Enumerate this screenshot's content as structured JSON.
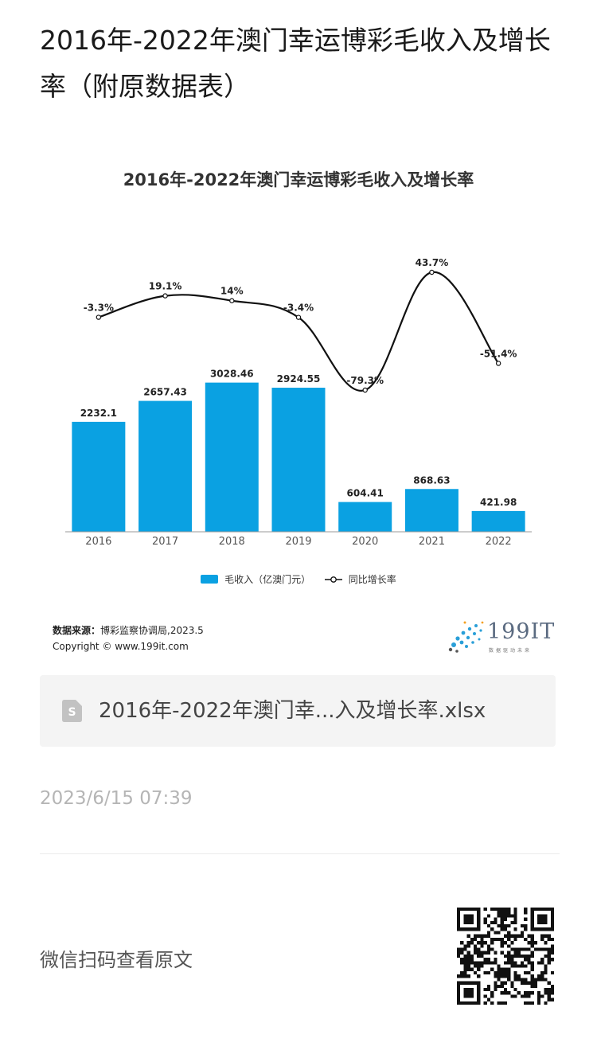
{
  "page": {
    "title": "2016年-2022年澳门幸运博彩毛收入及增长率（附原数据表）"
  },
  "chart_data": {
    "type": "bar",
    "title": "2016年-2022年澳门幸运博彩毛收入及增长率",
    "categories": [
      "2016",
      "2017",
      "2018",
      "2019",
      "2020",
      "2021",
      "2022"
    ],
    "series": [
      {
        "name": "毛收入（亿澳门元）",
        "type": "bar",
        "values": [
          2232.1,
          2657.43,
          3028.46,
          2924.55,
          604.41,
          868.63,
          421.98
        ],
        "labels": [
          "2232.1",
          "2657.43",
          "3028.46",
          "2924.55",
          "604.41",
          "868.63",
          "421.98"
        ],
        "color": "#0aa1e2"
      },
      {
        "name": "同比增长率",
        "type": "line",
        "values": [
          -3.3,
          19.1,
          14,
          -3.4,
          -79.3,
          43.7,
          -51.4
        ],
        "labels": [
          "-3.3%",
          "19.1%",
          "14%",
          "-3.4%",
          "-79.3%",
          "43.7%",
          "-51.4%"
        ],
        "color": "#111111"
      }
    ],
    "ylim": [
      0,
      3200
    ],
    "grid": false,
    "legend_position": "bottom"
  },
  "source": {
    "label": "数据来源：",
    "text": "博彩监察协调局,2023.5",
    "copyright": "Copyright © www.199it.com"
  },
  "brand": {
    "name": "199IT",
    "tagline": "数据驱动未来"
  },
  "file": {
    "name": "2016年-2022年澳门幸...入及增长率.xlsx"
  },
  "timestamp": "2023/6/15 07:39",
  "footer": {
    "scan_text": "微信扫码查看原文"
  },
  "colors": {
    "bar": "#0aa1e2",
    "line": "#111111",
    "card": "#f4f4f4"
  }
}
